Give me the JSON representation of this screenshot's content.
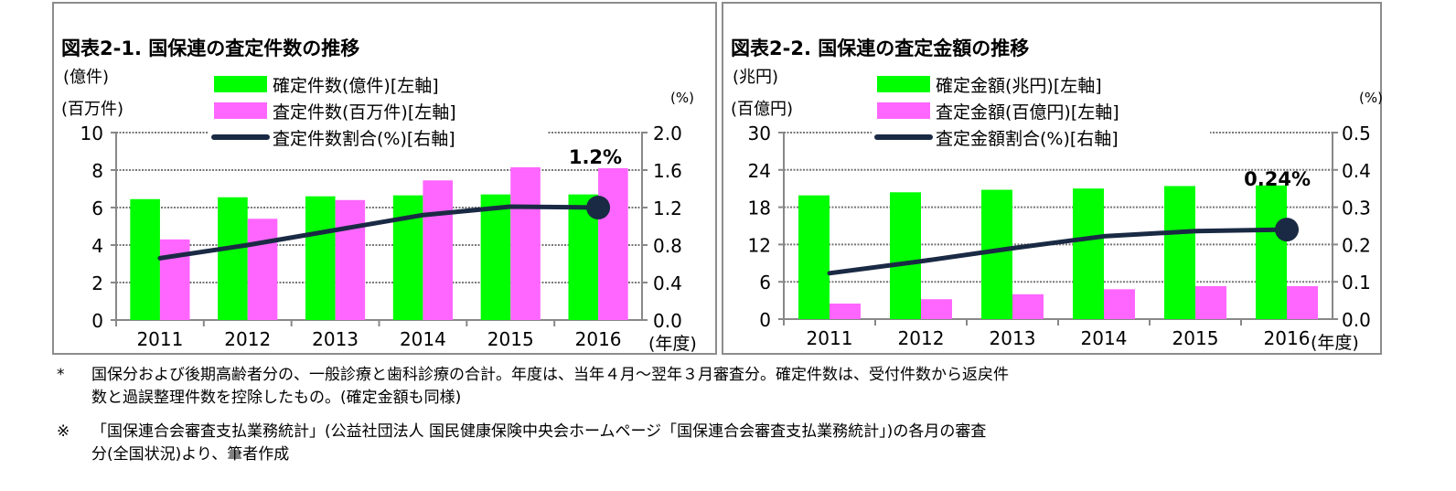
{
  "chart_data": [
    {
      "type": "bar",
      "title": "図表2-1. 国保連の査定件数の推移",
      "ylabel_left": [
        "(億件)",
        "(百万件)"
      ],
      "ylabel_right": "(%)",
      "xlabel": "(年度)",
      "categories": [
        "2011",
        "2012",
        "2013",
        "2014",
        "2015",
        "2016"
      ],
      "ylim_left": [
        0,
        10
      ],
      "yticks_left": [
        "0",
        "2",
        "4",
        "6",
        "8",
        "10"
      ],
      "ylim_right": [
        0,
        2.0
      ],
      "yticks_right": [
        "0.0",
        "0.4",
        "0.8",
        "1.2",
        "1.6",
        "2.0"
      ],
      "grid": "horizontal dotted",
      "legend_placement": "top",
      "series": [
        {
          "name": "確定件数(億件)[左軸]",
          "type": "bar",
          "axis": "left",
          "color": "#00ff00",
          "values": [
            6.45,
            6.55,
            6.6,
            6.65,
            6.7,
            6.7
          ]
        },
        {
          "name": "査定件数(百万件)[左軸]",
          "type": "bar",
          "axis": "left",
          "color": "#ff66ff",
          "values": [
            4.3,
            5.4,
            6.4,
            7.45,
            8.15,
            8.1
          ]
        },
        {
          "name": "査定件数割合(%)[右軸]",
          "type": "line",
          "axis": "right",
          "color": "#1a2a44",
          "values": [
            0.66,
            0.8,
            0.96,
            1.12,
            1.21,
            1.2
          ]
        }
      ],
      "annotation": "1.2%"
    },
    {
      "type": "bar",
      "title": "図表2-2. 国保連の査定金額の推移",
      "ylabel_left": [
        "(兆円)",
        "(百億円)"
      ],
      "ylabel_right": "(%)",
      "xlabel": "(年度)",
      "categories": [
        "2011",
        "2012",
        "2013",
        "2014",
        "2015",
        "2016"
      ],
      "ylim_left": [
        0,
        30
      ],
      "yticks_left": [
        "0",
        "6",
        "12",
        "18",
        "24",
        "30"
      ],
      "ylim_right": [
        0,
        0.5
      ],
      "yticks_right": [
        "0.0",
        "0.1",
        "0.2",
        "0.3",
        "0.4",
        "0.5"
      ],
      "grid": "horizontal dotted",
      "legend_placement": "top",
      "series": [
        {
          "name": "確定金額(兆円)[左軸]",
          "type": "bar",
          "axis": "left",
          "color": "#00ff00",
          "values": [
            19.9,
            20.4,
            20.8,
            21.0,
            21.4,
            21.5
          ]
        },
        {
          "name": "査定金額(百億円)[左軸]",
          "type": "bar",
          "axis": "left",
          "color": "#ff66ff",
          "values": [
            2.5,
            3.2,
            4.0,
            4.8,
            5.3,
            5.3
          ]
        },
        {
          "name": "査定金額割合(%)[右軸]",
          "type": "line",
          "axis": "right",
          "color": "#1a2a44",
          "values": [
            0.123,
            0.155,
            0.19,
            0.222,
            0.236,
            0.24
          ]
        }
      ],
      "annotation": "0.24%"
    }
  ],
  "notes": {
    "note1_mark": "*",
    "note1_line1": "国保分および後期高齢者分の、一般診療と歯科診療の合計。年度は、当年４月～翌年３月審査分。確定件数は、受付件数から返戻件",
    "note1_line2": "数と過誤整理件数を控除したもの。(確定金額も同様)",
    "note2_mark": "※",
    "note2_line1": "「国保連合会審査支払業務統計」(公益社団法人 国民健康保険中央会ホームページ「国保連合会審査支払業務統計」)の各月の審査",
    "note2_line2": "分(全国状況)より、筆者作成"
  }
}
